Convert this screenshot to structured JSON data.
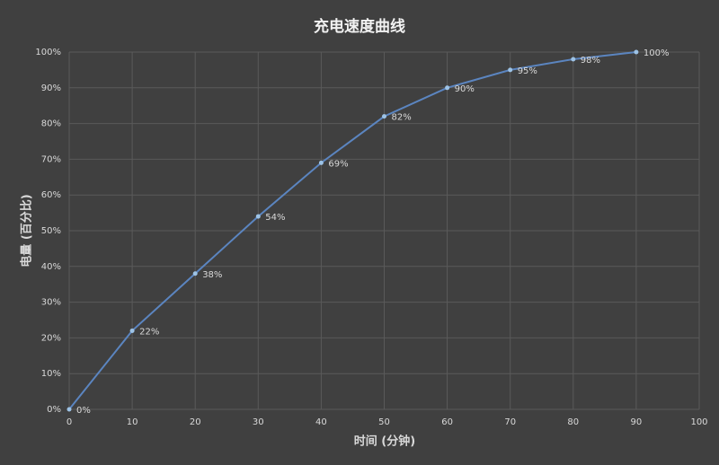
{
  "chart_data": {
    "type": "line",
    "title": "充电速度曲线",
    "x_label": "时间 (分钟)",
    "y_label": "电量 (百分比)",
    "x": [
      0,
      10,
      20,
      30,
      40,
      50,
      60,
      70,
      80,
      90
    ],
    "series": [
      {
        "color": "#5b85c0",
        "values": [
          0,
          22,
          38,
          54,
          69,
          82,
          90,
          95,
          98,
          100
        ],
        "value_labels": [
          "0%",
          "22%",
          "38%",
          "54%",
          "69%",
          "82%",
          "90%",
          "95%",
          "98%",
          "100%"
        ]
      }
    ],
    "xlim": [
      0,
      100
    ],
    "xticks": [
      0,
      10,
      20,
      30,
      40,
      50,
      60,
      70,
      80,
      90,
      100
    ],
    "ylim": [
      0,
      100
    ],
    "yticks": [
      {
        "value": 0,
        "label": "0%"
      },
      {
        "value": 10,
        "label": "10%"
      },
      {
        "value": 20,
        "label": "20%"
      },
      {
        "value": 30,
        "label": "30%"
      },
      {
        "value": 40,
        "label": "40%"
      },
      {
        "value": 50,
        "label": "50%"
      },
      {
        "value": 60,
        "label": "60%"
      },
      {
        "value": 70,
        "label": "70%"
      },
      {
        "value": 80,
        "label": "80%"
      },
      {
        "value": 90,
        "label": "90%"
      },
      {
        "value": 100,
        "label": "100%"
      }
    ],
    "grid": true
  }
}
